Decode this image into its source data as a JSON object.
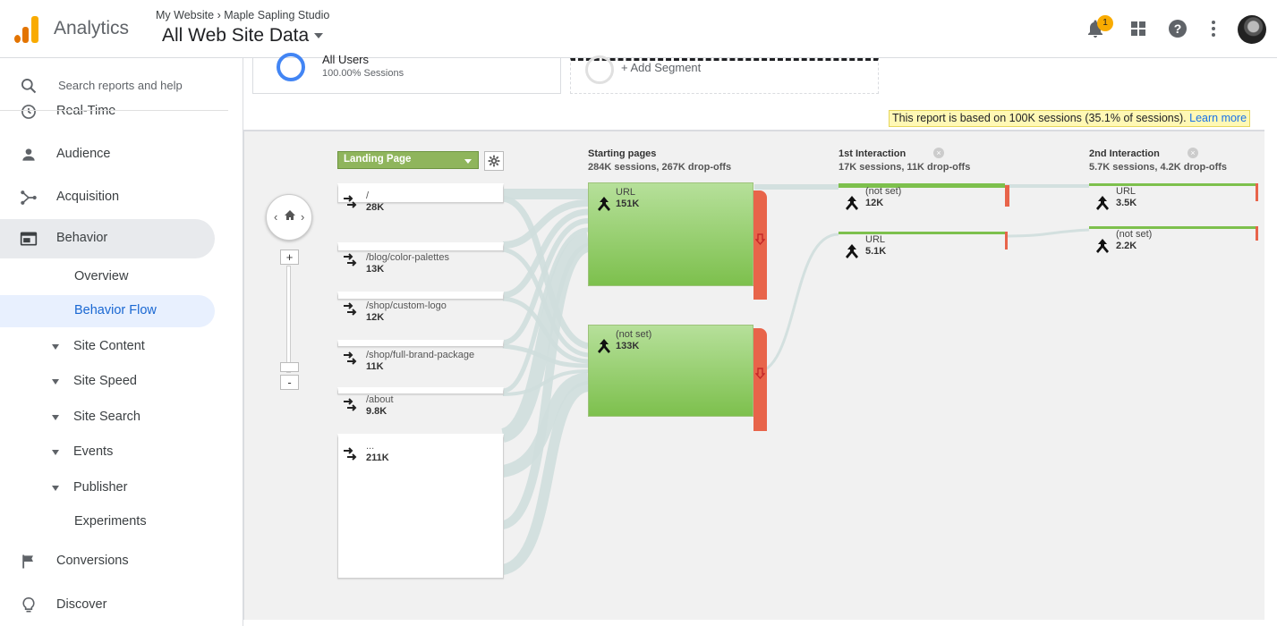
{
  "header": {
    "app_name": "Analytics",
    "breadcrumb_account": "My Website",
    "breadcrumb_sep": "›",
    "breadcrumb_property": "Maple Sapling Studio",
    "view_name": "All Web Site Data",
    "notification_count": "1",
    "colors": {
      "logo_orange": "#f9ab00",
      "logo_dark": "#e37400"
    }
  },
  "sidebar": {
    "search_placeholder": "Search reports and help",
    "items": {
      "realtime": "Real-Time",
      "audience": "Audience",
      "acquisition": "Acquisition",
      "behavior": "Behavior",
      "overview": "Overview",
      "behavior_flow": "Behavior Flow",
      "site_content": "Site Content",
      "site_speed": "Site Speed",
      "site_search": "Site Search",
      "events": "Events",
      "publisher": "Publisher",
      "experiments": "Experiments",
      "conversions": "Conversions",
      "discover": "Discover"
    }
  },
  "segments": {
    "all_users": "All Users",
    "all_users_pct": "100.00% Sessions",
    "add_segment": "+ Add Segment"
  },
  "notice": {
    "text": "This report is based on 100K sessions (35.1% of sessions).",
    "link": "Learn more"
  },
  "flow": {
    "dimension": "Landing Page",
    "landing_pages": [
      {
        "name": "/",
        "value": "28K"
      },
      {
        "name": "/blog/color-palettes",
        "value": "13K"
      },
      {
        "name": "/shop/custom-logo",
        "value": "12K"
      },
      {
        "name": "/shop/full-brand-package",
        "value": "11K"
      },
      {
        "name": "/about",
        "value": "9.8K"
      },
      {
        "name": "...",
        "value": "211K"
      }
    ],
    "starting": {
      "title": "Starting pages",
      "summary": "284K sessions, 267K drop-offs",
      "nodes": [
        {
          "name": "URL",
          "value": "151K"
        },
        {
          "name": "(not set)",
          "value": "133K"
        }
      ]
    },
    "first": {
      "title": "1st Interaction",
      "summary": "17K sessions, 11K drop-offs",
      "nodes": [
        {
          "name": "(not set)",
          "value": "12K"
        },
        {
          "name": "URL",
          "value": "5.1K"
        }
      ]
    },
    "second": {
      "title": "2nd Interaction",
      "summary": "5.7K sessions, 4.2K drop-offs",
      "nodes": [
        {
          "name": "URL",
          "value": "3.5K"
        },
        {
          "name": "(not set)",
          "value": "2.2K"
        }
      ]
    }
  }
}
